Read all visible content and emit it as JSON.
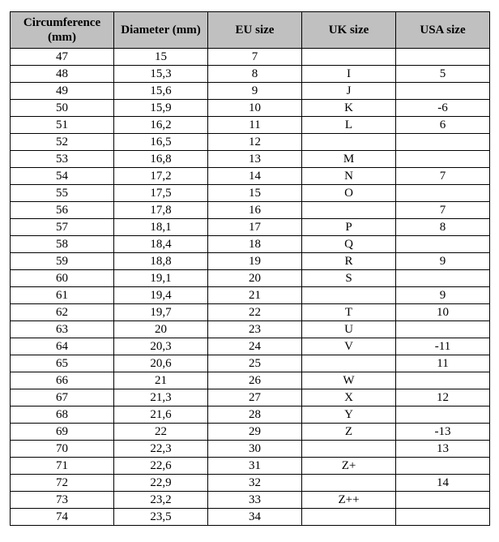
{
  "table": {
    "header_bg": "#c0c0c0",
    "border_color": "#000000",
    "columns": [
      "Circumference (mm)",
      "Diameter (mm)",
      "EU size",
      "UK size",
      "USA size"
    ],
    "rows": [
      [
        "47",
        "15",
        "7",
        "",
        ""
      ],
      [
        "48",
        "15,3",
        "8",
        "I",
        "5"
      ],
      [
        "49",
        "15,6",
        "9",
        "J",
        ""
      ],
      [
        "50",
        "15,9",
        "10",
        "K",
        "-6"
      ],
      [
        "51",
        "16,2",
        "11",
        "L",
        "6"
      ],
      [
        "52",
        "16,5",
        "12",
        "",
        ""
      ],
      [
        "53",
        "16,8",
        "13",
        "M",
        ""
      ],
      [
        "54",
        "17,2",
        "14",
        "N",
        "7"
      ],
      [
        "55",
        "17,5",
        "15",
        "O",
        ""
      ],
      [
        "56",
        "17,8",
        "16",
        "",
        "7"
      ],
      [
        "57",
        "18,1",
        "17",
        "P",
        "8"
      ],
      [
        "58",
        "18,4",
        "18",
        "Q",
        ""
      ],
      [
        "59",
        "18,8",
        "19",
        "R",
        "9"
      ],
      [
        "60",
        "19,1",
        "20",
        "S",
        ""
      ],
      [
        "61",
        "19,4",
        "21",
        "",
        "9"
      ],
      [
        "62",
        "19,7",
        "22",
        "T",
        "10"
      ],
      [
        "63",
        "20",
        "23",
        "U",
        ""
      ],
      [
        "64",
        "20,3",
        "24",
        "V",
        "-11"
      ],
      [
        "65",
        "20,6",
        "25",
        "",
        "11"
      ],
      [
        "66",
        "21",
        "26",
        "W",
        ""
      ],
      [
        "67",
        "21,3",
        "27",
        "X",
        "12"
      ],
      [
        "68",
        "21,6",
        "28",
        "Y",
        ""
      ],
      [
        "69",
        "22",
        "29",
        "Z",
        "-13"
      ],
      [
        "70",
        "22,3",
        "30",
        "",
        "13"
      ],
      [
        "71",
        "22,6",
        "31",
        "Z+",
        ""
      ],
      [
        "72",
        "22,9",
        "32",
        "",
        "14"
      ],
      [
        "73",
        "23,2",
        "33",
        "Z++",
        ""
      ],
      [
        "74",
        "23,5",
        "34",
        "",
        ""
      ]
    ]
  }
}
